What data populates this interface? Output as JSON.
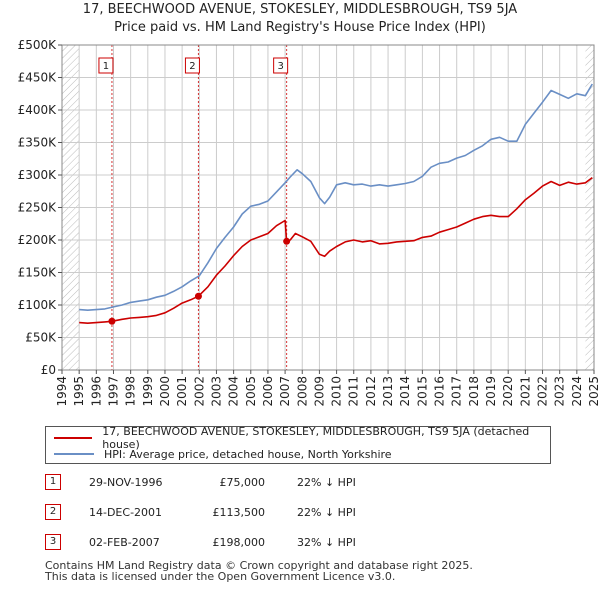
{
  "title_line1": "17, BEECHWOOD AVENUE, STOKESLEY, MIDDLESBROUGH, TS9 5JA",
  "title_line2": "Price paid vs. HM Land Registry's House Price Index (HPI)",
  "colors": {
    "red": "#cc0000",
    "blue": "#6a8fc5",
    "shade": "#dde6f4",
    "grid": "#cccccc"
  },
  "legend": {
    "red_label": "17, BEECHWOOD AVENUE, STOKESLEY, MIDDLESBROUGH, TS9 5JA (detached house)",
    "blue_label": "HPI: Average price, detached house, North Yorkshire"
  },
  "sales": [
    {
      "num": "1",
      "date": "29-NOV-1996",
      "price": "£75,000",
      "hpi": "22% ↓ HPI"
    },
    {
      "num": "2",
      "date": "14-DEC-2001",
      "price": "£113,500",
      "hpi": "22% ↓ HPI"
    },
    {
      "num": "3",
      "date": "02-FEB-2007",
      "price": "£198,000",
      "hpi": "32% ↓ HPI"
    }
  ],
  "footer": {
    "line1": "Contains HM Land Registry data © Crown copyright and database right 2025.",
    "line2": "This data is licensed under the Open Government Licence v3.0."
  },
  "chart_data": {
    "type": "line",
    "title": "17, BEECHWOOD AVENUE, STOKESLEY, MIDDLESBROUGH, TS9 5JA",
    "subtitle": "Price paid vs. HM Land Registry's House Price Index (HPI)",
    "xlim": [
      1994,
      2025
    ],
    "ylim": [
      0,
      500000
    ],
    "x_ticks": [
      "1994",
      "1995",
      "1996",
      "1997",
      "1998",
      "1999",
      "2000",
      "2001",
      "2002",
      "2003",
      "2004",
      "2005",
      "2006",
      "2007",
      "2008",
      "2009",
      "2010",
      "2011",
      "2012",
      "2013",
      "2014",
      "2015",
      "2016",
      "2017",
      "2018",
      "2019",
      "2020",
      "2021",
      "2022",
      "2023",
      "2024",
      "2025"
    ],
    "y_ticks": [
      {
        "value": 0,
        "label": "£0"
      },
      {
        "value": 50000,
        "label": "£50K"
      },
      {
        "value": 100000,
        "label": "£100K"
      },
      {
        "value": 150000,
        "label": "£150K"
      },
      {
        "value": 200000,
        "label": "£200K"
      },
      {
        "value": 250000,
        "label": "£250K"
      },
      {
        "value": 300000,
        "label": "£300K"
      },
      {
        "value": 350000,
        "label": "£350K"
      },
      {
        "value": 400000,
        "label": "£400K"
      },
      {
        "value": 450000,
        "label": "£450K"
      },
      {
        "value": 500000,
        "label": "£500K"
      }
    ],
    "hatch_ranges": [
      [
        1994,
        1995
      ],
      [
        2024.5,
        2025
      ]
    ],
    "series": [
      {
        "name": "17, BEECHWOOD AVENUE, STOKESLEY, MIDDLESBROUGH, TS9 5JA (detached house)",
        "color": "#cc0000",
        "x": [
          1995.0,
          1995.5,
          1996.0,
          1996.5,
          1996.91,
          1997.5,
          1998.0,
          1998.5,
          1999.0,
          1999.5,
          2000.0,
          2000.5,
          2001.0,
          2001.5,
          2001.95,
          2002.5,
          2003.0,
          2003.5,
          2004.0,
          2004.5,
          2005.0,
          2005.5,
          2006.0,
          2006.5,
          2007.0,
          2007.09,
          2007.3,
          2007.6,
          2008.0,
          2008.5,
          2009.0,
          2009.3,
          2009.6,
          2010.0,
          2010.5,
          2011.0,
          2011.5,
          2012.0,
          2012.5,
          2013.0,
          2013.5,
          2014.0,
          2014.5,
          2015.0,
          2015.5,
          2016.0,
          2016.5,
          2017.0,
          2017.5,
          2018.0,
          2018.5,
          2019.0,
          2019.5,
          2020.0,
          2020.5,
          2021.0,
          2021.5,
          2022.0,
          2022.5,
          2023.0,
          2023.5,
          2024.0,
          2024.5,
          2024.9
        ],
        "values": [
          73000,
          72000,
          73000,
          74000,
          75000,
          78000,
          80000,
          81000,
          82000,
          84000,
          88000,
          95000,
          103000,
          108000,
          113500,
          128000,
          146000,
          160000,
          176000,
          190000,
          200000,
          205000,
          210000,
          222000,
          230000,
          198000,
          200000,
          210000,
          205000,
          198000,
          178000,
          175000,
          183000,
          190000,
          197000,
          200000,
          197000,
          199000,
          194000,
          195000,
          197000,
          198000,
          199000,
          204000,
          206000,
          212000,
          216000,
          220000,
          226000,
          232000,
          236000,
          238000,
          236000,
          236000,
          248000,
          262000,
          272000,
          283000,
          290000,
          284000,
          289000,
          286000,
          288000,
          296000
        ]
      },
      {
        "name": "HPI: Average price, detached house, North Yorkshire",
        "color": "#6a8fc5",
        "x": [
          1995.0,
          1995.5,
          1996.0,
          1996.5,
          1997.0,
          1997.5,
          1998.0,
          1998.5,
          1999.0,
          1999.5,
          2000.0,
          2000.5,
          2001.0,
          2001.5,
          2002.0,
          2002.5,
          2003.0,
          2003.5,
          2004.0,
          2004.5,
          2005.0,
          2005.5,
          2006.0,
          2006.5,
          2007.0,
          2007.3,
          2007.7,
          2008.0,
          2008.5,
          2009.0,
          2009.3,
          2009.6,
          2010.0,
          2010.5,
          2011.0,
          2011.5,
          2012.0,
          2012.5,
          2013.0,
          2013.5,
          2014.0,
          2014.5,
          2015.0,
          2015.5,
          2016.0,
          2016.5,
          2017.0,
          2017.5,
          2018.0,
          2018.5,
          2019.0,
          2019.5,
          2020.0,
          2020.5,
          2021.0,
          2021.5,
          2022.0,
          2022.5,
          2023.0,
          2023.5,
          2024.0,
          2024.5,
          2024.9
        ],
        "values": [
          93000,
          92000,
          93000,
          94000,
          97000,
          100000,
          104000,
          106000,
          108000,
          112000,
          115000,
          121000,
          128000,
          137000,
          145000,
          165000,
          187000,
          204000,
          220000,
          240000,
          252000,
          255000,
          260000,
          274000,
          288000,
          297000,
          308000,
          302000,
          290000,
          265000,
          256000,
          266000,
          285000,
          288000,
          285000,
          286000,
          283000,
          285000,
          283000,
          285000,
          287000,
          290000,
          298000,
          312000,
          318000,
          320000,
          326000,
          330000,
          338000,
          345000,
          355000,
          358000,
          352000,
          352000,
          378000,
          395000,
          412000,
          430000,
          424000,
          418000,
          425000,
          422000,
          440000
        ]
      }
    ],
    "markers": [
      {
        "label": "1",
        "x": 1996.91,
        "y": 75000
      },
      {
        "label": "2",
        "x": 2001.95,
        "y": 113500
      },
      {
        "label": "3",
        "x": 2007.09,
        "y": 198000
      }
    ]
  }
}
